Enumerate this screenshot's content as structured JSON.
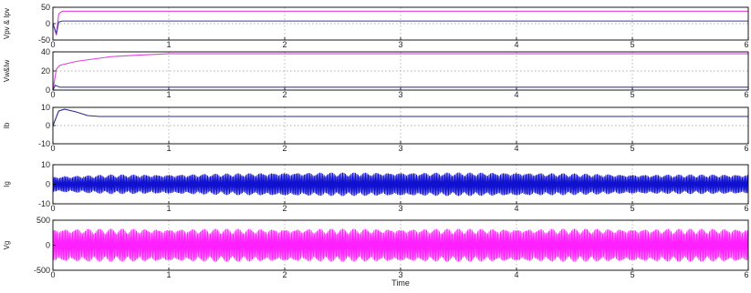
{
  "chart_data": [
    {
      "type": "line",
      "ylabel": "Vpv & Ipv",
      "xlim": [
        0,
        6
      ],
      "ylim": [
        -50,
        50
      ],
      "xticks": [
        0,
        1,
        2,
        3,
        4,
        5,
        6
      ],
      "yticks": [
        50,
        0,
        -50
      ],
      "grid": true,
      "series": [
        {
          "color": "#e040e0",
          "x": [
            0,
            0.03,
            0.05,
            0.08,
            6
          ],
          "y": [
            0,
            -35,
            30,
            38,
            38
          ]
        },
        {
          "color": "#3a3aa8",
          "x": [
            0,
            0.03,
            0.05,
            0.08,
            6
          ],
          "y": [
            0,
            -30,
            5,
            8,
            8
          ]
        }
      ]
    },
    {
      "type": "line",
      "ylabel": "Vw&Iw",
      "xlim": [
        0,
        6
      ],
      "ylim": [
        0,
        40
      ],
      "xticks": [
        0,
        1,
        2,
        3,
        4,
        5,
        6
      ],
      "yticks": [
        40,
        20,
        0
      ],
      "grid": true,
      "series": [
        {
          "color": "#e040e0",
          "x": [
            0,
            0.03,
            0.06,
            0.2,
            0.5,
            0.8,
            1.0,
            2.0,
            6.0
          ],
          "y": [
            0,
            22,
            26,
            30,
            35,
            37,
            38,
            38,
            38
          ]
        },
        {
          "color": "#3a3aa8",
          "x": [
            0,
            0.02,
            0.06,
            0.2,
            6.0
          ],
          "y": [
            0,
            5,
            3,
            3,
            3
          ]
        }
      ]
    },
    {
      "type": "line",
      "ylabel": "Ib",
      "xlim": [
        0,
        6
      ],
      "ylim": [
        -10,
        10
      ],
      "xticks": [
        0,
        1,
        2,
        3,
        4,
        5,
        6
      ],
      "yticks": [
        10,
        0,
        -10
      ],
      "grid": true,
      "series": [
        {
          "color": "#2a2a90",
          "x": [
            0,
            0.05,
            0.1,
            0.2,
            0.3,
            0.4,
            6.0
          ],
          "y": [
            0,
            8,
            9,
            7.5,
            5.5,
            5,
            5
          ]
        }
      ]
    },
    {
      "type": "line",
      "ylabel": "Ig",
      "xlim": [
        0,
        6
      ],
      "ylim": [
        -10,
        10
      ],
      "xticks": [
        0,
        1,
        2,
        3,
        4,
        5,
        6
      ],
      "yticks": [
        10,
        0,
        -10
      ],
      "grid": true,
      "oscillation": {
        "color": "#1010d0",
        "amplitude": [
          [
            0,
            4
          ],
          [
            0.5,
            5
          ],
          [
            1,
            5
          ],
          [
            2,
            6
          ],
          [
            3,
            6
          ],
          [
            4,
            6
          ],
          [
            5,
            5
          ],
          [
            6,
            5
          ]
        ],
        "carrier_cycles_per_unit": 50,
        "beat_cycles_per_unit": 10
      }
    },
    {
      "type": "line",
      "ylabel": "Vg",
      "xlabel": "Time",
      "xlim": [
        0,
        6
      ],
      "ylim": [
        -500,
        500
      ],
      "xticks": [
        0,
        1,
        2,
        3,
        4,
        5,
        6
      ],
      "yticks": [
        500,
        0,
        -500
      ],
      "grid": true,
      "oscillation": {
        "color": "#ff20ff",
        "amplitude": [
          [
            0,
            330
          ],
          [
            6,
            330
          ]
        ],
        "carrier_cycles_per_unit": 50,
        "beat_cycles_per_unit": 10
      }
    }
  ]
}
